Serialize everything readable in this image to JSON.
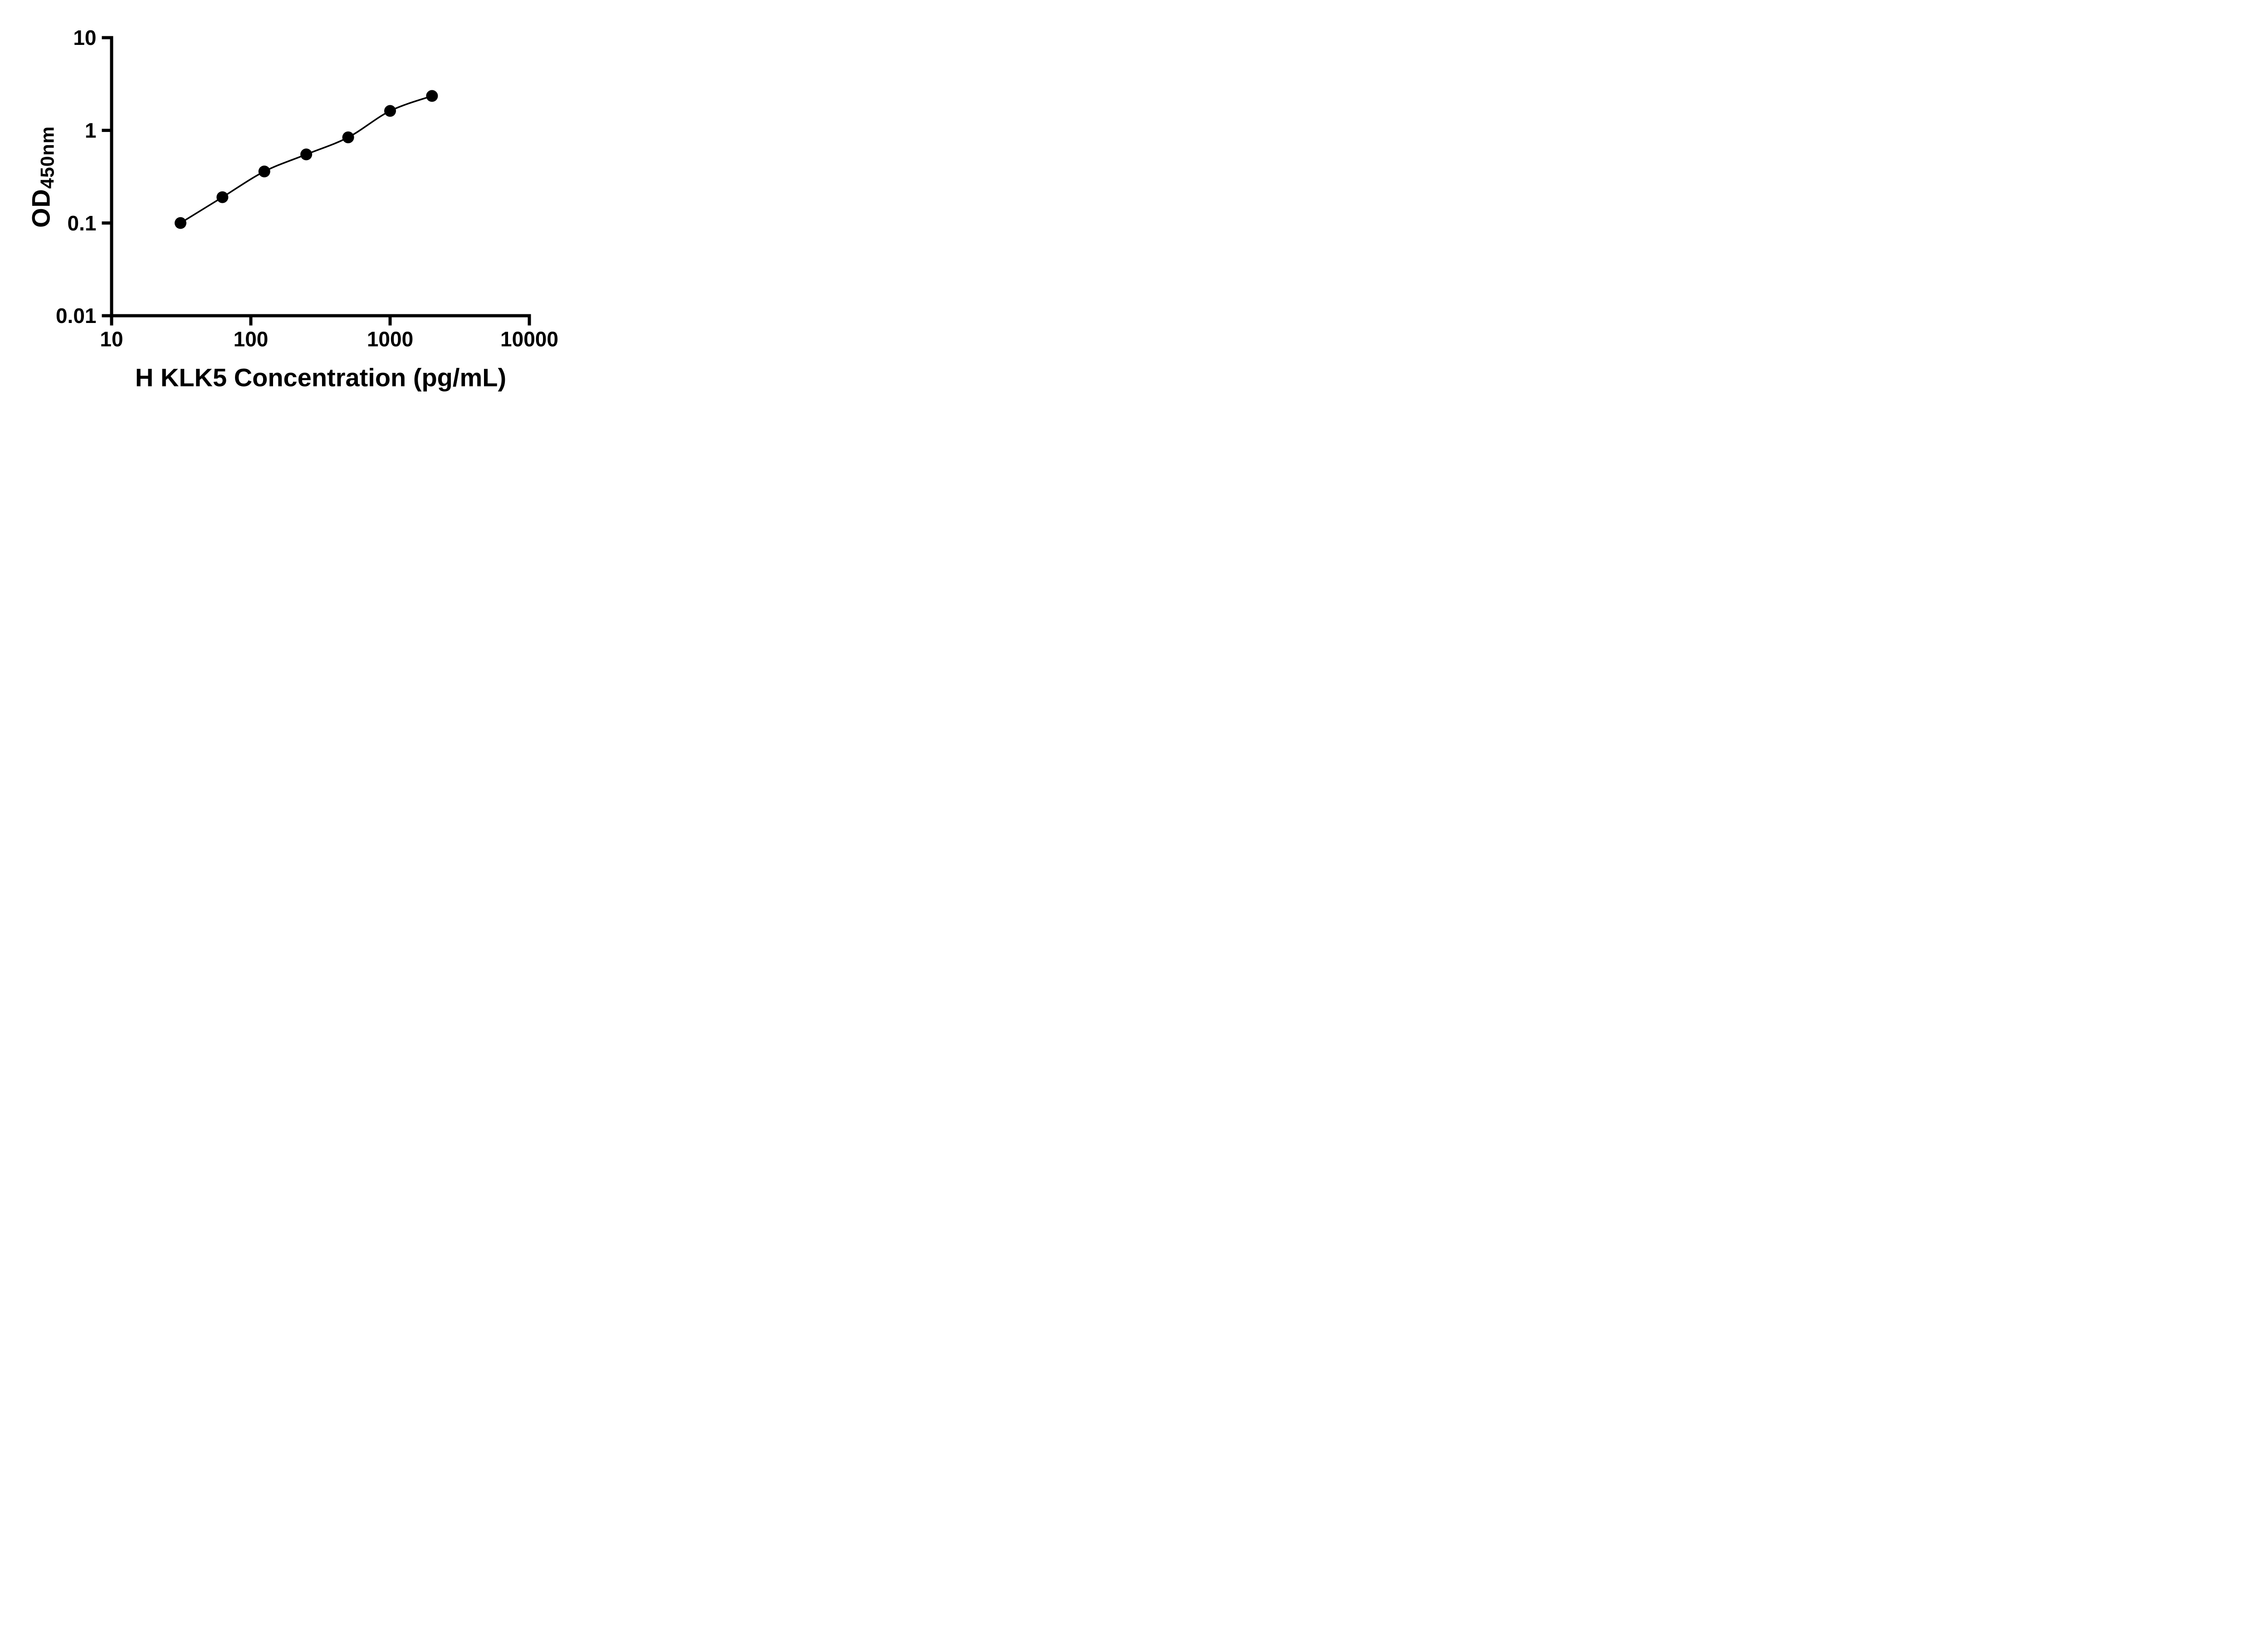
{
  "chart_data": {
    "type": "scatter",
    "title": "",
    "xlabel": "H KLK5 Concentration (pg/mL)",
    "ylabel_main": "OD",
    "ylabel_sub": "450nm",
    "x_scale": "log",
    "y_scale": "log",
    "xlim": [
      10,
      10000
    ],
    "ylim": [
      0.01,
      10
    ],
    "grid": false,
    "legend": "none",
    "x_ticks": [
      {
        "value": 10,
        "label": "10"
      },
      {
        "value": 100,
        "label": "100"
      },
      {
        "value": 1000,
        "label": "1000"
      },
      {
        "value": 10000,
        "label": "10000"
      }
    ],
    "y_ticks": [
      {
        "value": 0.01,
        "label": "0.01"
      },
      {
        "value": 0.1,
        "label": "0.1"
      },
      {
        "value": 1,
        "label": "1"
      },
      {
        "value": 10,
        "label": "10"
      }
    ],
    "series": [
      {
        "x": [
          31.25,
          62.5,
          125,
          250,
          500,
          1000,
          2000
        ],
        "y": [
          0.1,
          0.19,
          0.36,
          0.55,
          0.84,
          1.62,
          2.35
        ],
        "marker": "filled-circle",
        "line": "smooth",
        "color": "#000000"
      }
    ]
  },
  "colors": {
    "axis": "#000000",
    "background": "#ffffff",
    "text": "#000000"
  }
}
